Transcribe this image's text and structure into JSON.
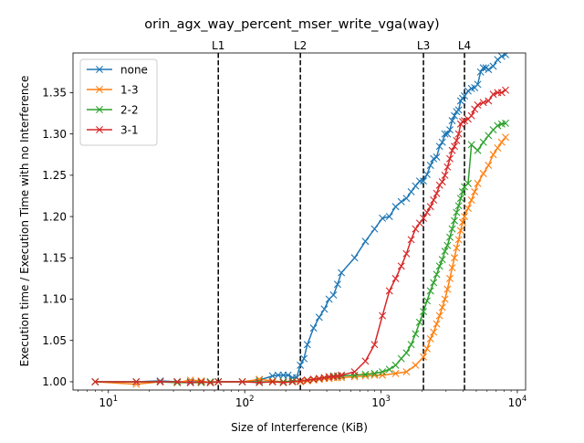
{
  "chart_data": {
    "type": "line",
    "title": "orin_agx_way_percent_mser_write_vga(way)",
    "xlabel": "Size of Interference (KiB)",
    "ylabel": "Execution time / Execution Time with no Interference",
    "xscale": "log",
    "xlim": [
      5.5,
      11500
    ],
    "ylim": [
      0.99,
      1.398
    ],
    "x_tick_values": [
      10,
      100,
      1000,
      10000
    ],
    "x_tick_labels": [
      "10^1",
      "10^2",
      "10^3",
      "10^4"
    ],
    "y_tick_values": [
      1.0,
      1.05,
      1.1,
      1.15,
      1.2,
      1.25,
      1.3,
      1.35
    ],
    "y_tick_labels": [
      "1.00",
      "1.05",
      "1.10",
      "1.15",
      "1.20",
      "1.25",
      "1.30",
      "1.35"
    ],
    "grid": false,
    "legend": "top-left",
    "marker": "x",
    "vertical_lines": [
      {
        "label": "L1",
        "x": 64
      },
      {
        "label": "L2",
        "x": 256
      },
      {
        "label": "L3",
        "x": 2048
      },
      {
        "label": "L4",
        "x": 4096
      }
    ],
    "series": [
      {
        "name": "none",
        "color": "#1f77b4",
        "x": [
          8,
          16,
          24,
          32,
          40,
          48,
          56,
          64,
          96,
          128,
          160,
          176,
          192,
          208,
          224,
          240,
          256,
          272,
          288,
          320,
          352,
          384,
          416,
          448,
          480,
          512,
          640,
          768,
          896,
          1024,
          1152,
          1280,
          1408,
          1536,
          1664,
          1792,
          1920,
          2048,
          2176,
          2304,
          2432,
          2560,
          2688,
          2816,
          2944,
          3072,
          3200,
          3328,
          3456,
          3584,
          3712,
          3840,
          3968,
          4096,
          4352,
          4608,
          4864,
          5120,
          5376,
          5632,
          5888,
          6144,
          6656,
          7168,
          7680,
          8192
        ],
        "y": [
          1.0,
          1.0,
          1.001,
          1.0,
          1.0,
          1.0,
          0.999,
          1.0,
          1.0,
          1.002,
          1.007,
          1.008,
          1.008,
          1.008,
          1.005,
          1.005,
          1.02,
          1.028,
          1.045,
          1.065,
          1.078,
          1.088,
          1.1,
          1.105,
          1.118,
          1.132,
          1.15,
          1.17,
          1.185,
          1.198,
          1.2,
          1.212,
          1.218,
          1.222,
          1.23,
          1.237,
          1.243,
          1.243,
          1.251,
          1.262,
          1.27,
          1.272,
          1.285,
          1.29,
          1.3,
          1.3,
          1.305,
          1.316,
          1.322,
          1.327,
          1.329,
          1.34,
          1.343,
          1.346,
          1.352,
          1.355,
          1.356,
          1.36,
          1.375,
          1.38,
          1.38,
          1.378,
          1.382,
          1.39,
          1.394,
          1.396
        ]
      },
      {
        "name": "1-3",
        "color": "#ff7f0e",
        "x": [
          8,
          16,
          24,
          32,
          40,
          48,
          56,
          64,
          96,
          128,
          160,
          192,
          224,
          256,
          288,
          320,
          352,
          384,
          416,
          448,
          480,
          512,
          640,
          768,
          896,
          1024,
          1280,
          1536,
          1792,
          2048,
          2176,
          2304,
          2432,
          2560,
          2688,
          2816,
          2944,
          3072,
          3200,
          3328,
          3456,
          3584,
          3712,
          3840,
          3968,
          4096,
          4352,
          4608,
          4864,
          5120,
          5632,
          6144,
          6656,
          7168,
          7680,
          8192
        ],
        "y": [
          1.0,
          0.997,
          1.0,
          0.999,
          1.002,
          1.001,
          0.999,
          1.0,
          1.0,
          1.003,
          1.001,
          1.0,
          1.0,
          1.0,
          1.001,
          1.002,
          1.003,
          1.004,
          1.004,
          1.005,
          1.005,
          1.005,
          1.006,
          1.007,
          1.008,
          1.008,
          1.01,
          1.012,
          1.02,
          1.03,
          1.04,
          1.052,
          1.06,
          1.07,
          1.08,
          1.09,
          1.1,
          1.112,
          1.125,
          1.138,
          1.15,
          1.162,
          1.172,
          1.183,
          1.193,
          1.2,
          1.21,
          1.22,
          1.23,
          1.24,
          1.252,
          1.262,
          1.275,
          1.283,
          1.29,
          1.296
        ]
      },
      {
        "name": "2-2",
        "color": "#2ca02c",
        "x": [
          8,
          16,
          24,
          32,
          40,
          48,
          56,
          64,
          96,
          128,
          160,
          192,
          224,
          256,
          288,
          320,
          352,
          384,
          416,
          448,
          480,
          512,
          640,
          768,
          896,
          1024,
          1152,
          1280,
          1408,
          1536,
          1664,
          1792,
          1920,
          2048,
          2176,
          2304,
          2432,
          2560,
          2688,
          2816,
          2944,
          3072,
          3200,
          3328,
          3456,
          3584,
          3712,
          3840,
          3968,
          4096,
          4352,
          4608,
          5120,
          5632,
          6144,
          6656,
          7168,
          7680,
          8192
        ],
        "y": [
          1.0,
          1.0,
          1.0,
          0.999,
          0.999,
          0.999,
          1.0,
          1.0,
          1.0,
          1.0,
          1.0,
          1.0,
          1.001,
          1.001,
          1.002,
          1.003,
          1.004,
          1.005,
          1.006,
          1.007,
          1.007,
          1.007,
          1.008,
          1.009,
          1.01,
          1.012,
          1.015,
          1.02,
          1.028,
          1.035,
          1.045,
          1.058,
          1.072,
          1.085,
          1.098,
          1.11,
          1.12,
          1.13,
          1.14,
          1.148,
          1.158,
          1.165,
          1.175,
          1.185,
          1.195,
          1.205,
          1.213,
          1.222,
          1.23,
          1.236,
          1.24,
          1.287,
          1.28,
          1.29,
          1.298,
          1.305,
          1.31,
          1.312,
          1.313
        ]
      },
      {
        "name": "3-1",
        "color": "#d62728",
        "x": [
          8,
          16,
          24,
          32,
          40,
          48,
          56,
          64,
          96,
          128,
          160,
          192,
          224,
          256,
          288,
          320,
          352,
          384,
          416,
          448,
          480,
          512,
          640,
          768,
          896,
          1024,
          1152,
          1280,
          1408,
          1536,
          1664,
          1792,
          1920,
          2048,
          2176,
          2304,
          2432,
          2560,
          2688,
          2816,
          2944,
          3072,
          3200,
          3328,
          3456,
          3584,
          3712,
          3840,
          3968,
          4096,
          4352,
          4608,
          4864,
          5120,
          5632,
          6144,
          6656,
          7168,
          7680,
          8192
        ],
        "y": [
          1.0,
          1.0,
          1.0,
          1.0,
          0.999,
          1.0,
          0.999,
          1.0,
          1.0,
          0.999,
          1.0,
          0.999,
          1.0,
          1.001,
          1.002,
          1.003,
          1.004,
          1.005,
          1.006,
          1.006,
          1.007,
          1.008,
          1.012,
          1.025,
          1.045,
          1.08,
          1.11,
          1.125,
          1.14,
          1.155,
          1.172,
          1.185,
          1.192,
          1.198,
          1.205,
          1.212,
          1.22,
          1.228,
          1.238,
          1.242,
          1.25,
          1.26,
          1.27,
          1.28,
          1.285,
          1.292,
          1.3,
          1.312,
          1.315,
          1.316,
          1.318,
          1.322,
          1.33,
          1.335,
          1.338,
          1.34,
          1.348,
          1.35,
          1.35,
          1.353
        ]
      }
    ]
  }
}
